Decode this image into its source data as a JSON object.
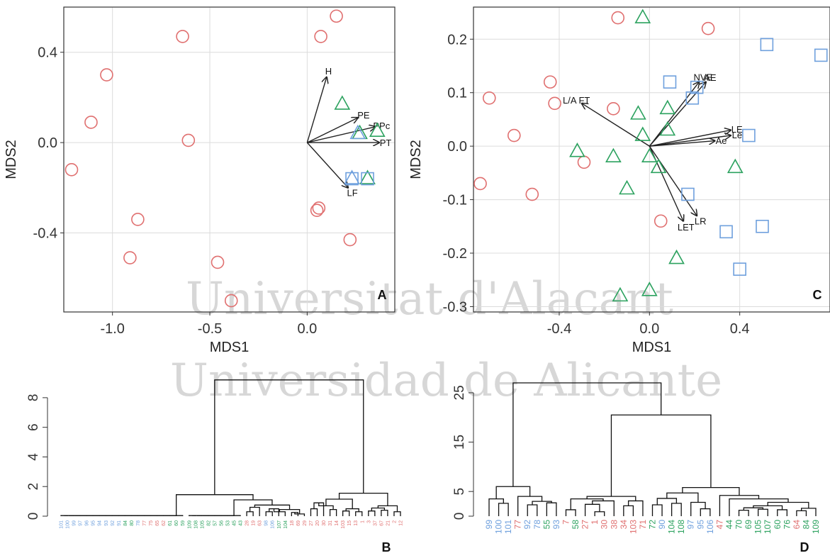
{
  "figure": {
    "watermark_lines": [
      "Universitat d'Alacant",
      "Universidad de Alicante"
    ]
  },
  "chart_data": [
    {
      "panel": "A",
      "type": "scatter",
      "xlabel": "MDS1",
      "ylabel": "MDS2",
      "xlim": [
        -1.25,
        0.45
      ],
      "ylim": [
        -0.75,
        0.6
      ],
      "xticks": [
        -1.0,
        -0.5,
        0.0
      ],
      "xtick_labels": [
        "-1.0",
        "-0.5",
        "0.0"
      ],
      "yticks": [
        -0.4,
        0.0,
        0.4
      ],
      "ytick_labels": [
        "-0.4",
        "0.0",
        "0.4"
      ],
      "grid": true,
      "colors": {
        "red": "#e07070",
        "green": "#2ca25f",
        "blue": "#6fa0dd"
      },
      "points": [
        {
          "shape": "circle",
          "color": "red",
          "x": 0.15,
          "y": 0.56
        },
        {
          "shape": "circle",
          "color": "red",
          "x": 0.07,
          "y": 0.47
        },
        {
          "shape": "circle",
          "color": "red",
          "x": -0.64,
          "y": 0.47
        },
        {
          "shape": "circle",
          "color": "red",
          "x": -1.03,
          "y": 0.3
        },
        {
          "shape": "circle",
          "color": "red",
          "x": -1.11,
          "y": 0.09
        },
        {
          "shape": "circle",
          "color": "red",
          "x": -0.61,
          "y": 0.01
        },
        {
          "shape": "circle",
          "color": "red",
          "x": -1.21,
          "y": -0.12
        },
        {
          "shape": "circle",
          "color": "red",
          "x": 0.05,
          "y": -0.3
        },
        {
          "shape": "circle",
          "color": "red",
          "x": 0.06,
          "y": -0.29
        },
        {
          "shape": "circle",
          "color": "red",
          "x": -0.87,
          "y": -0.34
        },
        {
          "shape": "circle",
          "color": "red",
          "x": 0.22,
          "y": -0.43
        },
        {
          "shape": "circle",
          "color": "red",
          "x": -0.91,
          "y": -0.51
        },
        {
          "shape": "circle",
          "color": "red",
          "x": -0.46,
          "y": -0.53
        },
        {
          "shape": "circle",
          "color": "red",
          "x": -0.39,
          "y": -0.7
        },
        {
          "shape": "triangle",
          "color": "green",
          "x": 0.18,
          "y": 0.17
        },
        {
          "shape": "triangle",
          "color": "green",
          "x": 0.36,
          "y": 0.05
        },
        {
          "shape": "triangle",
          "color": "green",
          "x": 0.27,
          "y": 0.04
        },
        {
          "shape": "triangle",
          "color": "blue",
          "x": 0.26,
          "y": 0.04
        },
        {
          "shape": "triangle",
          "color": "blue",
          "x": 0.23,
          "y": -0.16
        },
        {
          "shape": "triangle",
          "color": "green",
          "x": 0.31,
          "y": -0.16
        },
        {
          "shape": "square",
          "color": "blue",
          "x": 0.23,
          "y": -0.16
        },
        {
          "shape": "square",
          "color": "blue",
          "x": 0.31,
          "y": -0.16
        }
      ],
      "vectors": [
        {
          "label": "H",
          "x": 0.1,
          "y": 0.29
        },
        {
          "label": "PE",
          "x": 0.26,
          "y": 0.11
        },
        {
          "label": "PPc",
          "x": 0.35,
          "y": 0.07
        },
        {
          "label": "PT",
          "x": 0.37,
          "y": 0.0
        },
        {
          "label": "LF",
          "x": 0.21,
          "y": -0.2
        }
      ],
      "panel_label": "A"
    },
    {
      "panel": "C",
      "type": "scatter",
      "xlabel": "MDS1",
      "ylabel": "MDS2",
      "xlim": [
        -0.78,
        0.8
      ],
      "ylim": [
        -0.31,
        0.26
      ],
      "xticks": [
        -0.4,
        0.0,
        0.4
      ],
      "xtick_labels": [
        "-0.4",
        "0.0",
        "0.4"
      ],
      "yticks": [
        -0.3,
        -0.2,
        -0.1,
        0.0,
        0.1,
        0.2
      ],
      "ytick_labels": [
        "-0.3",
        "-0.2",
        "-0.1",
        "0.0",
        "0.1",
        "0.2"
      ],
      "grid": true,
      "colors": {
        "red": "#e07070",
        "green": "#2ca25f",
        "blue": "#6fa0dd"
      },
      "points": [
        {
          "shape": "circle",
          "color": "red",
          "x": -0.14,
          "y": 0.24
        },
        {
          "shape": "circle",
          "color": "red",
          "x": 0.26,
          "y": 0.22
        },
        {
          "shape": "circle",
          "color": "red",
          "x": -0.44,
          "y": 0.12
        },
        {
          "shape": "circle",
          "color": "red",
          "x": -0.71,
          "y": 0.09
        },
        {
          "shape": "circle",
          "color": "red",
          "x": -0.42,
          "y": 0.08
        },
        {
          "shape": "circle",
          "color": "red",
          "x": -0.16,
          "y": 0.07
        },
        {
          "shape": "circle",
          "color": "red",
          "x": -0.6,
          "y": 0.02
        },
        {
          "shape": "circle",
          "color": "red",
          "x": -0.29,
          "y": -0.03
        },
        {
          "shape": "circle",
          "color": "red",
          "x": -0.75,
          "y": -0.07
        },
        {
          "shape": "circle",
          "color": "red",
          "x": -0.52,
          "y": -0.09
        },
        {
          "shape": "circle",
          "color": "red",
          "x": 0.05,
          "y": -0.14
        },
        {
          "shape": "triangle",
          "color": "green",
          "x": -0.03,
          "y": 0.24
        },
        {
          "shape": "triangle",
          "color": "green",
          "x": 0.08,
          "y": 0.07
        },
        {
          "shape": "triangle",
          "color": "green",
          "x": -0.05,
          "y": 0.06
        },
        {
          "shape": "triangle",
          "color": "green",
          "x": 0.08,
          "y": 0.03
        },
        {
          "shape": "triangle",
          "color": "green",
          "x": -0.03,
          "y": 0.02
        },
        {
          "shape": "triangle",
          "color": "green",
          "x": -0.32,
          "y": -0.01
        },
        {
          "shape": "triangle",
          "color": "green",
          "x": -0.16,
          "y": -0.02
        },
        {
          "shape": "triangle",
          "color": "green",
          "x": 0.0,
          "y": -0.02
        },
        {
          "shape": "triangle",
          "color": "green",
          "x": 0.04,
          "y": -0.04
        },
        {
          "shape": "triangle",
          "color": "green",
          "x": 0.38,
          "y": -0.04
        },
        {
          "shape": "triangle",
          "color": "green",
          "x": -0.1,
          "y": -0.08
        },
        {
          "shape": "triangle",
          "color": "green",
          "x": 0.12,
          "y": -0.21
        },
        {
          "shape": "triangle",
          "color": "green",
          "x": 0.0,
          "y": -0.27
        },
        {
          "shape": "triangle",
          "color": "green",
          "x": -0.13,
          "y": -0.28
        },
        {
          "shape": "square",
          "color": "blue",
          "x": 0.52,
          "y": 0.19
        },
        {
          "shape": "square",
          "color": "blue",
          "x": 0.76,
          "y": 0.17
        },
        {
          "shape": "square",
          "color": "blue",
          "x": 0.09,
          "y": 0.12
        },
        {
          "shape": "square",
          "color": "blue",
          "x": 0.21,
          "y": 0.11
        },
        {
          "shape": "square",
          "color": "blue",
          "x": 0.19,
          "y": 0.09
        },
        {
          "shape": "square",
          "color": "blue",
          "x": 0.44,
          "y": 0.02
        },
        {
          "shape": "square",
          "color": "blue",
          "x": 0.17,
          "y": -0.09
        },
        {
          "shape": "square",
          "color": "blue",
          "x": 0.34,
          "y": -0.16
        },
        {
          "shape": "square",
          "color": "blue",
          "x": 0.5,
          "y": -0.15
        },
        {
          "shape": "square",
          "color": "blue",
          "x": 0.4,
          "y": -0.23
        }
      ],
      "vectors": [
        {
          "label": "NVE",
          "x": 0.22,
          "y": 0.12
        },
        {
          "label": "AE",
          "x": 0.25,
          "y": 0.12
        },
        {
          "label": "L/A FT",
          "x": -0.3,
          "y": 0.08
        },
        {
          "label": "LE",
          "x": 0.36,
          "y": 0.03
        },
        {
          "label": "Le",
          "x": 0.36,
          "y": 0.02
        },
        {
          "label": "Ae",
          "x": 0.29,
          "y": 0.01
        },
        {
          "label": "LR",
          "x": 0.21,
          "y": -0.13
        },
        {
          "label": "LET",
          "x": 0.15,
          "y": -0.14
        }
      ],
      "panel_label": "C"
    },
    {
      "panel": "B",
      "type": "dendrogram",
      "ylim": [
        0,
        9
      ],
      "yticks": [
        0,
        2,
        4,
        6,
        8
      ],
      "ytick_labels": [
        "0",
        "2",
        "4",
        "6",
        "8"
      ],
      "colors": {
        "red": "#e07070",
        "green": "#2ca25f",
        "blue": "#6fa0dd"
      },
      "leaves": [
        {
          "label": "101",
          "color": "blue"
        },
        {
          "label": "100",
          "color": "blue"
        },
        {
          "label": "99",
          "color": "blue"
        },
        {
          "label": "97",
          "color": "blue"
        },
        {
          "label": "96",
          "color": "blue"
        },
        {
          "label": "95",
          "color": "blue"
        },
        {
          "label": "94",
          "color": "blue"
        },
        {
          "label": "93",
          "color": "blue"
        },
        {
          "label": "92",
          "color": "blue"
        },
        {
          "label": "91",
          "color": "blue"
        },
        {
          "label": "84",
          "color": "green"
        },
        {
          "label": "80",
          "color": "green"
        },
        {
          "label": "78",
          "color": "blue"
        },
        {
          "label": "77",
          "color": "red"
        },
        {
          "label": "75",
          "color": "red"
        },
        {
          "label": "65",
          "color": "red"
        },
        {
          "label": "62",
          "color": "red"
        },
        {
          "label": "61",
          "color": "green"
        },
        {
          "label": "60",
          "color": "green"
        },
        {
          "label": "59",
          "color": "green"
        },
        {
          "label": "109",
          "color": "green"
        },
        {
          "label": "108",
          "color": "green"
        },
        {
          "label": "105",
          "color": "green"
        },
        {
          "label": "82",
          "color": "green"
        },
        {
          "label": "57",
          "color": "green"
        },
        {
          "label": "56",
          "color": "green"
        },
        {
          "label": "53",
          "color": "green"
        },
        {
          "label": "45",
          "color": "green"
        },
        {
          "label": "43",
          "color": "green"
        },
        {
          "label": "28",
          "color": "red"
        },
        {
          "label": "19",
          "color": "red"
        },
        {
          "label": "63",
          "color": "red"
        },
        {
          "label": "98",
          "color": "blue"
        },
        {
          "label": "106",
          "color": "blue"
        },
        {
          "label": "107",
          "color": "green"
        },
        {
          "label": "104",
          "color": "green"
        },
        {
          "label": "18",
          "color": "red"
        },
        {
          "label": "69",
          "color": "red"
        },
        {
          "label": "29",
          "color": "red"
        },
        {
          "label": "27",
          "color": "red"
        },
        {
          "label": "20",
          "color": "red"
        },
        {
          "label": "30",
          "color": "red"
        },
        {
          "label": "31",
          "color": "red"
        },
        {
          "label": "14",
          "color": "red"
        },
        {
          "label": "103",
          "color": "red"
        },
        {
          "label": "15",
          "color": "red"
        },
        {
          "label": "13",
          "color": "red"
        },
        {
          "label": "1",
          "color": "red"
        },
        {
          "label": "3",
          "color": "red"
        },
        {
          "label": "37",
          "color": "red"
        },
        {
          "label": "67",
          "color": "red"
        },
        {
          "label": "21",
          "color": "red"
        },
        {
          "label": "2",
          "color": "red"
        },
        {
          "label": "12",
          "color": "red"
        }
      ],
      "panel_label": "B"
    },
    {
      "panel": "D",
      "type": "dendrogram",
      "ylim": [
        0,
        27
      ],
      "yticks": [
        0,
        5,
        15,
        25
      ],
      "ytick_labels": [
        "0",
        "5",
        "15",
        "25"
      ],
      "colors": {
        "red": "#e07070",
        "green": "#2ca25f",
        "blue": "#6fa0dd"
      },
      "leaves": [
        {
          "label": "99",
          "color": "blue"
        },
        {
          "label": "100",
          "color": "blue"
        },
        {
          "label": "101",
          "color": "blue"
        },
        {
          "label": "77",
          "color": "red"
        },
        {
          "label": "92",
          "color": "blue"
        },
        {
          "label": "78",
          "color": "blue"
        },
        {
          "label": "55",
          "color": "green"
        },
        {
          "label": "93",
          "color": "blue"
        },
        {
          "label": "7",
          "color": "red"
        },
        {
          "label": "58",
          "color": "green"
        },
        {
          "label": "27",
          "color": "red"
        },
        {
          "label": "1",
          "color": "red"
        },
        {
          "label": "30",
          "color": "red"
        },
        {
          "label": "38",
          "color": "red"
        },
        {
          "label": "34",
          "color": "red"
        },
        {
          "label": "103",
          "color": "red"
        },
        {
          "label": "71",
          "color": "red"
        },
        {
          "label": "72",
          "color": "green"
        },
        {
          "label": "90",
          "color": "blue"
        },
        {
          "label": "104",
          "color": "green"
        },
        {
          "label": "108",
          "color": "green"
        },
        {
          "label": "97",
          "color": "blue"
        },
        {
          "label": "95",
          "color": "blue"
        },
        {
          "label": "106",
          "color": "blue"
        },
        {
          "label": "47",
          "color": "red"
        },
        {
          "label": "44",
          "color": "green"
        },
        {
          "label": "70",
          "color": "green"
        },
        {
          "label": "69",
          "color": "green"
        },
        {
          "label": "105",
          "color": "green"
        },
        {
          "label": "107",
          "color": "green"
        },
        {
          "label": "60",
          "color": "green"
        },
        {
          "label": "76",
          "color": "green"
        },
        {
          "label": "64",
          "color": "red"
        },
        {
          "label": "84",
          "color": "green"
        },
        {
          "label": "109",
          "color": "green"
        }
      ],
      "panel_label": "D"
    }
  ]
}
